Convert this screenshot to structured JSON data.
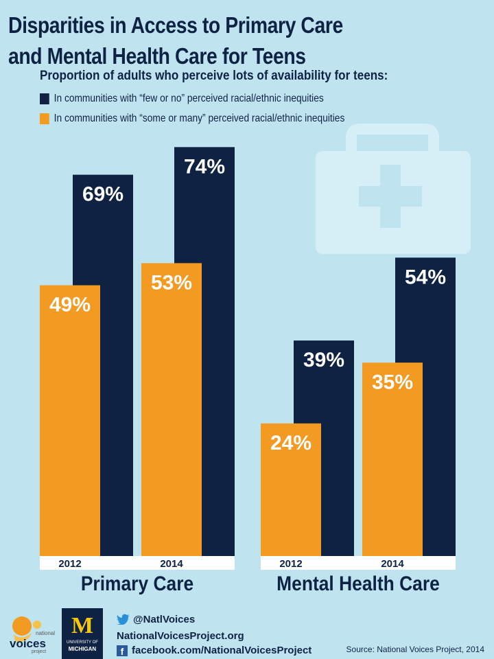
{
  "title": {
    "line1": "Disparities in Access to Primary Care",
    "line2": "and Mental Health Care for Teens"
  },
  "subtitle": "Proportion of adults who perceive lots of availability for teens:",
  "colors": {
    "navy": "#0f2242",
    "orange": "#f39a22",
    "background": "#bfe3ef",
    "kit": "#d6eef6"
  },
  "chart_data": {
    "type": "bar",
    "groups": [
      "Primary Care",
      "Mental Health Care"
    ],
    "categories": [
      "2012",
      "2014"
    ],
    "series": [
      {
        "name": "In communities with “few or no” perceived racial/ethnic inequities",
        "color": "#0f2242",
        "values": [
          [
            69,
            74
          ],
          [
            39,
            54
          ]
        ]
      },
      {
        "name": "In communities with “some or many” perceived racial/ethnic inequities",
        "color": "#f39a22",
        "values": [
          [
            49,
            53
          ],
          [
            24,
            35
          ]
        ]
      }
    ],
    "value_suffix": "%",
    "ylim": [
      0,
      100
    ]
  },
  "footer": {
    "logo_text": "national voices project",
    "logo_word": "voices",
    "logo_small_top": "national",
    "logo_small_bottom": "project",
    "um_letter": "M",
    "um_top": "UNIVERSITY OF",
    "um_bottom": "MICHIGAN",
    "twitter": "@NatlVoices",
    "website": "NationalVoicesProject.org",
    "facebook": "facebook.com/NationalVoicesProject",
    "source": "Source: National Voices Project, 2014"
  },
  "icons": {
    "kit": "first-aid-kit-icon",
    "twitter": "twitter-bird-icon",
    "facebook": "facebook-icon"
  }
}
